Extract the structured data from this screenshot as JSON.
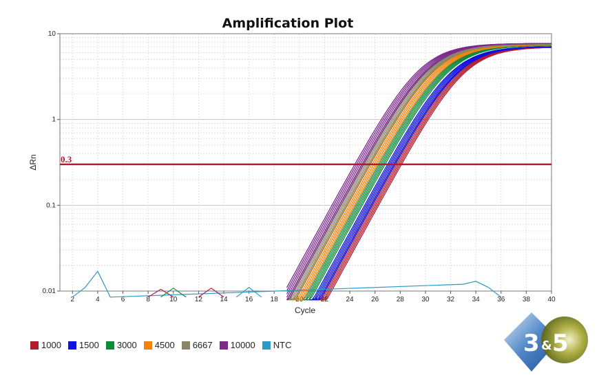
{
  "chart_data": {
    "type": "line",
    "title": "Amplification Plot",
    "xlabel": "Cycle",
    "ylabel": "ΔRn",
    "xlim": [
      1,
      40
    ],
    "ylim": [
      0.01,
      10
    ],
    "y_scale": "log",
    "x_ticks": [
      "2",
      "4",
      "6",
      "8",
      "10",
      "12",
      "14",
      "16",
      "18",
      "20",
      "22",
      "24",
      "26",
      "28",
      "30",
      "32",
      "34",
      "36",
      "38",
      "40"
    ],
    "y_ticks": [
      "0.01",
      "0.1",
      "1",
      "10"
    ],
    "grid": true,
    "threshold": {
      "value": 0.3,
      "label": "0.3",
      "color": "#b01c2e"
    },
    "series": [
      {
        "name": "1000",
        "color": "#b01c2e",
        "ct_range": [
          27.5,
          28.1
        ],
        "plateau": 7.0
      },
      {
        "name": "1500",
        "color": "#1010e0",
        "ct_range": [
          27.0,
          27.6
        ],
        "plateau": 7.1
      },
      {
        "name": "3000",
        "color": "#0f8a3c",
        "ct_range": [
          26.2,
          26.8
        ],
        "plateau": 7.3
      },
      {
        "name": "4500",
        "color": "#f4820a",
        "ct_range": [
          25.5,
          26.2
        ],
        "plateau": 7.4
      },
      {
        "name": "6667",
        "color": "#8a8568",
        "ct_range": [
          25.0,
          25.6
        ],
        "plateau": 7.5
      },
      {
        "name": "10000",
        "color": "#7b2a8c",
        "ct_range": [
          24.4,
          25.1
        ],
        "plateau": 7.7
      },
      {
        "name": "NTC",
        "color": "#2a9bc4",
        "x": [
          2,
          3,
          4,
          5,
          33,
          34,
          35,
          36
        ],
        "y": [
          0.0085,
          0.011,
          0.017,
          0.0085,
          0.012,
          0.013,
          0.011,
          0.0085
        ]
      }
    ],
    "noise": [
      {
        "color": "#b01c2e",
        "x": [
          8,
          9,
          10
        ],
        "y": [
          0.0085,
          0.0105,
          0.0085
        ]
      },
      {
        "color": "#0f8a3c",
        "x": [
          9,
          10,
          11
        ],
        "y": [
          0.0085,
          0.0108,
          0.0085
        ]
      },
      {
        "color": "#b01c2e",
        "x": [
          12,
          13,
          14
        ],
        "y": [
          0.0085,
          0.0108,
          0.0085
        ]
      },
      {
        "color": "#2a9bc4",
        "x": [
          15,
          16,
          17
        ],
        "y": [
          0.0085,
          0.011,
          0.0085
        ]
      }
    ],
    "legend": [
      "1000",
      "1500",
      "3000",
      "4500",
      "6667",
      "10000",
      "NTC"
    ],
    "legend_placement": "bottom-left"
  },
  "logo": {
    "text_left": "3",
    "text_amp": "&",
    "text_right": "5"
  }
}
